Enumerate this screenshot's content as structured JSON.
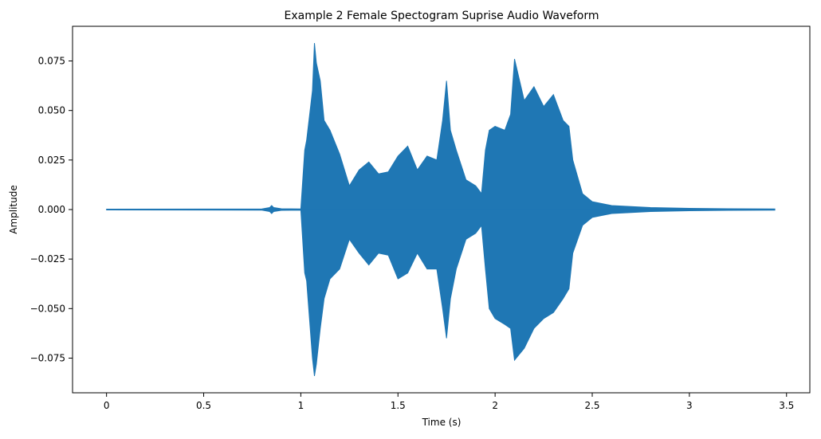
{
  "chart_data": {
    "type": "line",
    "title": "Example 2 Female Spectogram Suprise Audio Waveform",
    "xlabel": "Time (s)",
    "ylabel": "Amplitude",
    "xlim": [
      -0.175,
      3.62
    ],
    "ylim": [
      -0.0925,
      0.0925
    ],
    "x_ticks": [
      0,
      0.5,
      1,
      1.5,
      2,
      2.5,
      3,
      3.5
    ],
    "x_tick_labels": [
      "0",
      "0.5",
      "1",
      "1.5",
      "2",
      "2.5",
      "3",
      "3.5"
    ],
    "y_ticks": [
      -0.075,
      -0.05,
      -0.025,
      0.0,
      0.025,
      0.05,
      0.075
    ],
    "y_tick_labels": [
      "−0.075",
      "−0.050",
      "−0.025",
      "0.000",
      "0.025",
      "0.050",
      "0.075"
    ],
    "grid": false,
    "series": [
      {
        "color": "#1f77b4",
        "x": [
          0,
          0.8,
          0.84,
          0.85,
          0.86,
          0.9,
          1.0,
          1.02,
          1.03,
          1.06,
          1.07,
          1.08,
          1.1,
          1.12,
          1.15,
          1.2,
          1.25,
          1.3,
          1.35,
          1.4,
          1.45,
          1.5,
          1.55,
          1.6,
          1.65,
          1.7,
          1.73,
          1.75,
          1.77,
          1.8,
          1.85,
          1.9,
          1.93,
          1.95,
          1.97,
          2.0,
          2.05,
          2.08,
          2.1,
          2.15,
          2.2,
          2.25,
          2.3,
          2.35,
          2.38,
          2.4,
          2.45,
          2.5,
          2.6,
          2.7,
          2.8,
          3.0,
          3.2,
          3.44
        ],
        "upper": [
          0.0002,
          0.0003,
          0.001,
          0.002,
          0.001,
          0.0004,
          0.0003,
          0.03,
          0.035,
          0.06,
          0.084,
          0.074,
          0.065,
          0.045,
          0.04,
          0.028,
          0.012,
          0.02,
          0.024,
          0.018,
          0.019,
          0.027,
          0.032,
          0.02,
          0.027,
          0.025,
          0.045,
          0.065,
          0.04,
          0.03,
          0.015,
          0.012,
          0.008,
          0.03,
          0.04,
          0.042,
          0.04,
          0.048,
          0.076,
          0.055,
          0.062,
          0.052,
          0.058,
          0.045,
          0.042,
          0.025,
          0.008,
          0.004,
          0.002,
          0.0015,
          0.001,
          0.0006,
          0.0004,
          0.0003
        ],
        "lower": [
          -0.0002,
          -0.0003,
          -0.001,
          -0.002,
          -0.001,
          -0.0004,
          -0.0003,
          -0.032,
          -0.036,
          -0.075,
          -0.084,
          -0.078,
          -0.06,
          -0.045,
          -0.035,
          -0.03,
          -0.015,
          -0.022,
          -0.028,
          -0.022,
          -0.023,
          -0.035,
          -0.032,
          -0.022,
          -0.03,
          -0.03,
          -0.05,
          -0.065,
          -0.045,
          -0.03,
          -0.015,
          -0.012,
          -0.008,
          -0.03,
          -0.05,
          -0.055,
          -0.058,
          -0.06,
          -0.076,
          -0.07,
          -0.06,
          -0.055,
          -0.052,
          -0.045,
          -0.04,
          -0.022,
          -0.008,
          -0.004,
          -0.002,
          -0.0015,
          -0.001,
          -0.0006,
          -0.0004,
          -0.0003
        ]
      }
    ]
  }
}
